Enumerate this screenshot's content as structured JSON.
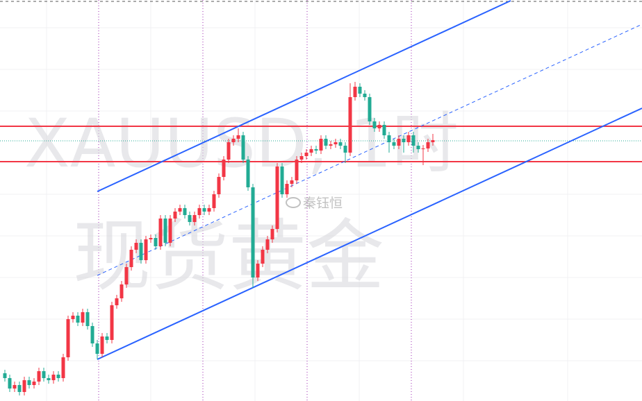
{
  "chart_data": {
    "type": "candlestick",
    "watermark": "XAUUSD, 1时",
    "subtitle": "现货黄金",
    "author": "秦钰恒",
    "up_color": "#f23645",
    "down_color": "#22ab94",
    "xlim": [
      0,
      132
    ],
    "ylim": [
      0,
      578
    ],
    "open": [
      40,
      33,
      18,
      23,
      13,
      30,
      23,
      28,
      43,
      33,
      30,
      38,
      33,
      63,
      118,
      123,
      113,
      128,
      108,
      83,
      68,
      93,
      88,
      138,
      148,
      168,
      193,
      218,
      228,
      203,
      233,
      235,
      223,
      263,
      228,
      263,
      273,
      278,
      268,
      258,
      268,
      278,
      273,
      278,
      298,
      323,
      348,
      373,
      378,
      383,
      348,
      308,
      178,
      198,
      218,
      233,
      248,
      338,
      298,
      313,
      318,
      348,
      353,
      358,
      363,
      361,
      378,
      368,
      370,
      373,
      368,
      358,
      438,
      453,
      443,
      438,
      403,
      393,
      398,
      383,
      373,
      368,
      378,
      373,
      383,
      368,
      363,
      364,
      373
    ],
    "high": [
      45,
      38,
      28,
      28,
      35,
      35,
      33,
      48,
      48,
      38,
      43,
      43,
      68,
      123,
      128,
      128,
      133,
      133,
      113,
      88,
      98,
      98,
      143,
      153,
      173,
      198,
      223,
      233,
      233,
      238,
      240,
      240,
      268,
      268,
      268,
      278,
      283,
      283,
      273,
      273,
      283,
      283,
      283,
      303,
      328,
      353,
      378,
      383,
      393,
      388,
      353,
      313,
      203,
      223,
      238,
      253,
      343,
      343,
      318,
      323,
      353,
      358,
      363,
      368,
      368,
      383,
      383,
      375,
      378,
      378,
      373,
      458,
      460,
      458,
      448,
      443,
      408,
      403,
      403,
      388,
      378,
      383,
      383,
      388,
      388,
      373,
      369,
      378,
      385
    ],
    "low": [
      28,
      13,
      13,
      8,
      8,
      18,
      18,
      23,
      28,
      25,
      25,
      28,
      28,
      58,
      113,
      108,
      108,
      103,
      78,
      60,
      63,
      83,
      83,
      133,
      143,
      163,
      188,
      213,
      198,
      198,
      228,
      218,
      218,
      223,
      223,
      258,
      268,
      263,
      253,
      253,
      263,
      268,
      268,
      273,
      293,
      318,
      343,
      368,
      373,
      343,
      303,
      163,
      173,
      193,
      213,
      228,
      243,
      293,
      293,
      308,
      313,
      343,
      348,
      353,
      356,
      356,
      363,
      363,
      365,
      363,
      343,
      353,
      433,
      438,
      433,
      398,
      388,
      388,
      378,
      358,
      363,
      363,
      358,
      368,
      358,
      358,
      340,
      359,
      368
    ],
    "close": [
      33,
      18,
      23,
      13,
      30,
      23,
      28,
      43,
      33,
      30,
      38,
      33,
      63,
      118,
      123,
      113,
      128,
      108,
      83,
      68,
      93,
      88,
      138,
      148,
      168,
      193,
      218,
      228,
      203,
      233,
      235,
      223,
      263,
      228,
      263,
      273,
      278,
      268,
      258,
      268,
      278,
      273,
      278,
      298,
      323,
      348,
      373,
      378,
      383,
      348,
      308,
      178,
      198,
      218,
      233,
      248,
      338,
      298,
      313,
      318,
      348,
      353,
      358,
      363,
      361,
      378,
      368,
      370,
      373,
      368,
      358,
      438,
      453,
      443,
      438,
      403,
      393,
      398,
      383,
      373,
      368,
      378,
      373,
      383,
      368,
      363,
      364,
      373,
      376
    ],
    "hlines": [
      {
        "value": 396,
        "color": "#f23645",
        "style": "solid"
      },
      {
        "value": 345,
        "color": "#f23645",
        "style": "solid"
      },
      {
        "value": 375,
        "color": "#22ab94",
        "style": "dotted"
      }
    ],
    "trendlines": [
      {
        "x": [
          20,
          105
        ],
        "y": [
          302,
          577
        ],
        "color": "#2962ff",
        "style": "solid"
      },
      {
        "x": [
          20,
          132
        ],
        "y": [
          60,
          422
        ],
        "color": "#2962ff",
        "style": "solid"
      },
      {
        "x": [
          20,
          132
        ],
        "y": [
          181,
          543
        ],
        "color": "#2962ff",
        "style": "dashed"
      }
    ]
  }
}
